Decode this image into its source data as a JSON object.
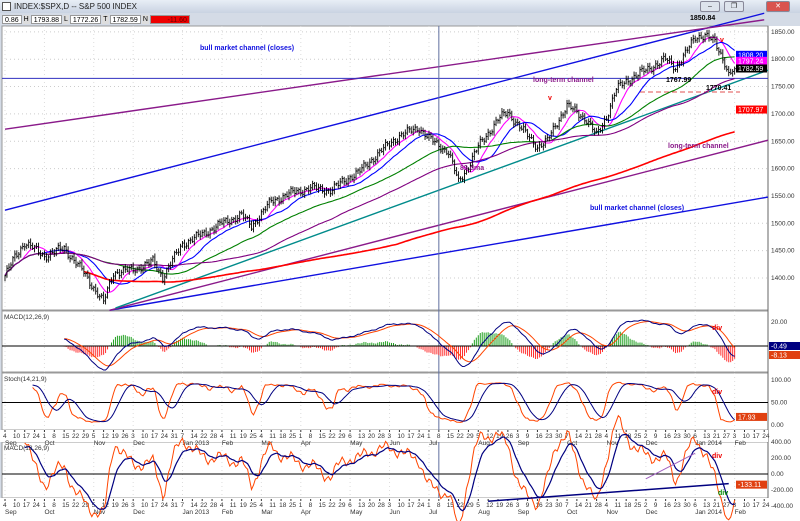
{
  "window": {
    "title": "INDEX:$SPX,D -- S&P 500 INDEX",
    "buttons": [
      "minimize",
      "restore",
      "close"
    ]
  },
  "values": {
    "o": "0.86",
    "h_label": "H",
    "h": "1793.88",
    "l_label": "L",
    "l": "1772.26",
    "c_label": "T",
    "c": "1782.59",
    "v_label": "N",
    "change": "-11.60"
  },
  "colors": {
    "bar": "#000000",
    "ma10": "#ff00ff",
    "ma20": "#0000ff",
    "ma50": "#008000",
    "ma89": "#800080",
    "ma200": "#ff0000",
    "channel_blue": "#1010e0",
    "channel_purple": "#8a1a8a",
    "teal": "#008b8b",
    "macd": "#000080",
    "signal": "#ff4500"
  },
  "chart_data": [
    {
      "type": "ohlc",
      "title": "S&P 500 INDEX",
      "ylim": [
        1330,
        1880
      ],
      "x_unit": "trading-day index from Sep 4 2012",
      "key_closes": [
        [
          0,
          1404
        ],
        [
          5,
          1438
        ],
        [
          10,
          1465
        ],
        [
          20,
          1440
        ],
        [
          30,
          1455
        ],
        [
          40,
          1410
        ],
        [
          50,
          1355
        ],
        [
          55,
          1410
        ],
        [
          65,
          1415
        ],
        [
          75,
          1430
        ],
        [
          80,
          1402
        ],
        [
          90,
          1462
        ],
        [
          100,
          1480
        ],
        [
          110,
          1500
        ],
        [
          120,
          1515
        ],
        [
          125,
          1495
        ],
        [
          135,
          1540
        ],
        [
          145,
          1555
        ],
        [
          155,
          1565
        ],
        [
          165,
          1560
        ],
        [
          175,
          1585
        ],
        [
          180,
          1595
        ],
        [
          190,
          1630
        ],
        [
          200,
          1660
        ],
        [
          210,
          1675
        ],
        [
          215,
          1655
        ],
        [
          225,
          1630
        ],
        [
          230,
          1575
        ],
        [
          235,
          1605
        ],
        [
          240,
          1640
        ],
        [
          250,
          1690
        ],
        [
          255,
          1703
        ],
        [
          265,
          1660
        ],
        [
          270,
          1640
        ],
        [
          275,
          1650
        ],
        [
          280,
          1685
        ],
        [
          285,
          1715
        ],
        [
          295,
          1690
        ],
        [
          300,
          1660
        ],
        [
          305,
          1695
        ],
        [
          310,
          1745
        ],
        [
          315,
          1760
        ],
        [
          320,
          1770
        ],
        [
          330,
          1790
        ],
        [
          335,
          1800
        ],
        [
          340,
          1785
        ],
        [
          345,
          1810
        ],
        [
          350,
          1840
        ],
        [
          355,
          1845
        ],
        [
          360,
          1830
        ],
        [
          365,
          1795
        ],
        [
          367,
          1772
        ],
        [
          370,
          1782.59
        ]
      ],
      "y_ticks": [
        "1850.00",
        "1800.00",
        "1750.00",
        "1700.00",
        "1650.00",
        "1600.00",
        "1550.00",
        "1500.00",
        "1450.00",
        "1400.00"
      ],
      "y_tick_values": [
        1850,
        1800,
        1750,
        1700,
        1650,
        1600,
        1550,
        1500,
        1450,
        1400
      ],
      "moving_averages": [
        10,
        20,
        50,
        89,
        200
      ],
      "trendlines": [
        {
          "name": "bull-upper",
          "color": "channel_blue",
          "p1": [
            0,
            1524
          ],
          "p2": [
            385,
            1884
          ]
        },
        {
          "name": "bull-lower",
          "color": "channel_blue",
          "p1": [
            53,
            1341
          ],
          "p2": [
            387,
            1548
          ]
        },
        {
          "name": "lt-upper",
          "color": "channel_purple",
          "p1": [
            0,
            1672
          ],
          "p2": [
            385,
            1872
          ]
        },
        {
          "name": "lt-lower",
          "color": "channel_purple",
          "p1": [
            53,
            1341
          ],
          "p2": [
            387,
            1652
          ]
        },
        {
          "name": "teal-support",
          "color": "teal",
          "p1": [
            56,
            1345
          ],
          "p2": [
            387,
            1780
          ]
        }
      ],
      "hline": 1765,
      "dashed_hline": 1740,
      "vline_day": 220,
      "annotations": {
        "bull_top": "bull market channel (closes)",
        "bull_bottom": "bull market channel (closes)",
        "lt_top": "long-term channel",
        "lt_bottom": "long-term channel",
        "dma": "89 dma",
        "high": "1850.84",
        "low1": "1767.99",
        "low2": "1770.41",
        "v": "v"
      },
      "badges": [
        {
          "text": "1808.20",
          "bg": "#0000ff",
          "price": 1808
        },
        {
          "text": "1797.24",
          "bg": "#ff00ff",
          "price": 1797
        },
        {
          "text": "1782.59",
          "bg": "#000000",
          "price": 1783
        },
        {
          "text": "1707.97",
          "bg": "#ff0000",
          "price": 1708
        }
      ]
    },
    {
      "type": "macd",
      "title": "MACD(12,26,9)",
      "y_ticks": [
        "20.00"
      ],
      "badges": [
        "-0.49",
        "-8.13"
      ],
      "annotation": "div"
    },
    {
      "type": "stochastic",
      "title": "Stoch(14,21,9)",
      "y_ticks": [
        "100.00",
        "50.00",
        "0.00"
      ],
      "badges": [
        "17.93"
      ],
      "annotation": "div"
    },
    {
      "type": "macd",
      "title": "MACD(12,26,9)",
      "y_ticks": [
        "400.00",
        "200.00",
        "0.00",
        "-200.00",
        "-400.00"
      ],
      "badges": [
        "-133.11"
      ],
      "annotation": "div"
    }
  ],
  "x_axis": {
    "day_labels": [
      "4",
      "10",
      "17",
      "24",
      "1",
      "8",
      "15",
      "22",
      "29",
      "5",
      "12",
      "19",
      "26",
      "3",
      "10",
      "17",
      "24",
      "31",
      "7",
      "14",
      "22",
      "28",
      "4",
      "11",
      "19",
      "25",
      "4",
      "11",
      "18",
      "25",
      "1",
      "8",
      "15",
      "22",
      "29",
      "6",
      "13",
      "20",
      "28",
      "3",
      "10",
      "17",
      "24",
      "1",
      "8",
      "15",
      "22",
      "29",
      "5",
      "12",
      "19",
      "26",
      "3",
      "9",
      "16",
      "23",
      "30",
      "7",
      "14",
      "21",
      "28",
      "4",
      "11",
      "18",
      "25",
      "2",
      "9",
      "16",
      "23",
      "30",
      "6",
      "13",
      "21",
      "27",
      "3",
      "10",
      "17",
      "24"
    ],
    "month_labels": [
      [
        0,
        "Sep"
      ],
      [
        4,
        "Oct"
      ],
      [
        9,
        "Nov"
      ],
      [
        13,
        "Dec"
      ],
      [
        18,
        "Jan 2013"
      ],
      [
        22,
        "Feb"
      ],
      [
        26,
        "Mar"
      ],
      [
        30,
        "Apr"
      ],
      [
        35,
        "May"
      ],
      [
        39,
        "Jun"
      ],
      [
        43,
        "Jul"
      ],
      [
        48,
        "Aug"
      ],
      [
        52,
        "Sep"
      ],
      [
        57,
        "Oct"
      ],
      [
        61,
        "Nov"
      ],
      [
        65,
        "Dec"
      ],
      [
        70,
        "Jan 2014"
      ],
      [
        74,
        "Feb"
      ]
    ]
  }
}
